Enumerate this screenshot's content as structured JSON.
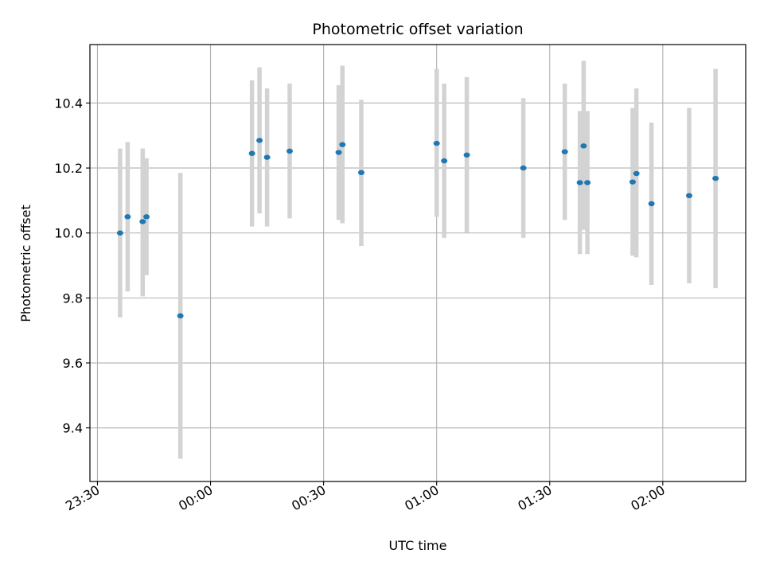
{
  "chart_data": {
    "type": "scatter",
    "title": "Photometric offset variation",
    "xlabel": "UTC time",
    "ylabel": "Photometric offset",
    "x_ticks": [
      "23:30",
      "00:00",
      "00:30",
      "01:00",
      "01:30",
      "02:00"
    ],
    "y_ticks": [
      "9.4",
      "9.6",
      "9.8",
      "10.0",
      "10.2",
      "10.4"
    ],
    "xlim": [
      "23:28",
      "02:22"
    ],
    "ylim": [
      9.235,
      10.58
    ],
    "grid": true,
    "colors": {
      "point": "#1f77b4",
      "errorbar": "#d3d3d3",
      "grid": "#b0b0b0"
    },
    "series": [
      {
        "points": [
          {
            "time": "23:36",
            "y": 10.0,
            "ylow": 9.74,
            "yhigh": 10.26
          },
          {
            "time": "23:38",
            "y": 10.05,
            "ylow": 9.82,
            "yhigh": 10.28
          },
          {
            "time": "23:42",
            "y": 10.035,
            "ylow": 9.805,
            "yhigh": 10.26
          },
          {
            "time": "23:43",
            "y": 10.05,
            "ylow": 9.87,
            "yhigh": 10.23
          },
          {
            "time": "23:52",
            "y": 9.745,
            "ylow": 9.305,
            "yhigh": 10.185
          },
          {
            "time": "00:11",
            "y": 10.245,
            "ylow": 10.02,
            "yhigh": 10.47
          },
          {
            "time": "00:13",
            "y": 10.285,
            "ylow": 10.06,
            "yhigh": 10.51
          },
          {
            "time": "00:15",
            "y": 10.233,
            "ylow": 10.02,
            "yhigh": 10.445
          },
          {
            "time": "00:21",
            "y": 10.252,
            "ylow": 10.045,
            "yhigh": 10.46
          },
          {
            "time": "00:34",
            "y": 10.248,
            "ylow": 10.04,
            "yhigh": 10.455
          },
          {
            "time": "00:35",
            "y": 10.272,
            "ylow": 10.03,
            "yhigh": 10.515
          },
          {
            "time": "00:40",
            "y": 10.186,
            "ylow": 9.96,
            "yhigh": 10.41
          },
          {
            "time": "01:00",
            "y": 10.276,
            "ylow": 10.05,
            "yhigh": 10.505
          },
          {
            "time": "01:02",
            "y": 10.222,
            "ylow": 9.985,
            "yhigh": 10.46
          },
          {
            "time": "01:08",
            "y": 10.24,
            "ylow": 10.0,
            "yhigh": 10.48
          },
          {
            "time": "01:23",
            "y": 10.2,
            "ylow": 9.985,
            "yhigh": 10.415
          },
          {
            "time": "01:34",
            "y": 10.25,
            "ylow": 10.04,
            "yhigh": 10.46
          },
          {
            "time": "01:38",
            "y": 10.155,
            "ylow": 9.935,
            "yhigh": 10.375
          },
          {
            "time": "01:39",
            "y": 10.268,
            "ylow": 10.01,
            "yhigh": 10.53
          },
          {
            "time": "01:40",
            "y": 10.155,
            "ylow": 9.935,
            "yhigh": 10.375
          },
          {
            "time": "01:52",
            "y": 10.157,
            "ylow": 9.93,
            "yhigh": 10.385
          },
          {
            "time": "01:53",
            "y": 10.183,
            "ylow": 9.925,
            "yhigh": 10.445
          },
          {
            "time": "01:57",
            "y": 10.09,
            "ylow": 9.84,
            "yhigh": 10.34
          },
          {
            "time": "02:07",
            "y": 10.115,
            "ylow": 9.845,
            "yhigh": 10.385
          },
          {
            "time": "02:14",
            "y": 10.168,
            "ylow": 9.83,
            "yhigh": 10.505
          }
        ]
      }
    ]
  }
}
